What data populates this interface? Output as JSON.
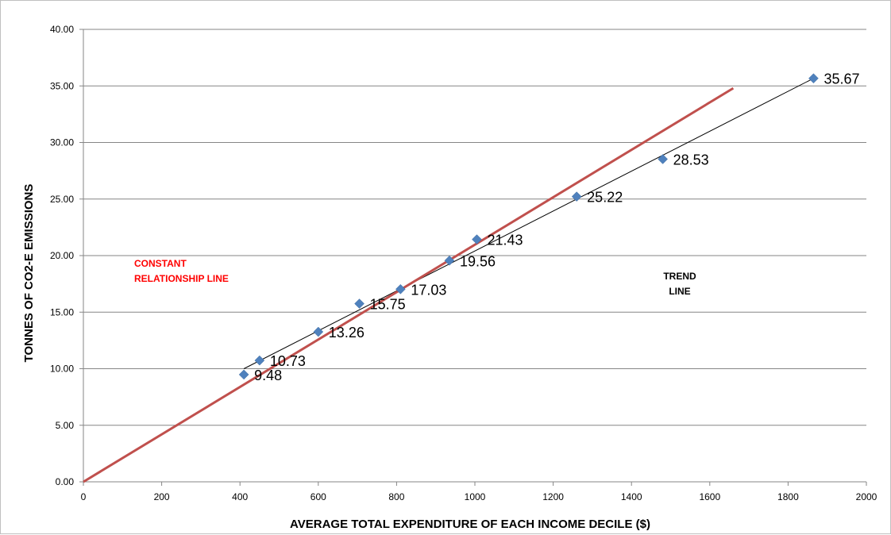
{
  "chart_data": {
    "type": "scatter",
    "title": "",
    "xlabel": "AVERAGE TOTAL EXPENDITURE OF EACH INCOME DECILE ($)",
    "ylabel": "TONNES OF CO2-E EMISSIONS",
    "xlim": [
      0,
      2000
    ],
    "ylim": [
      0,
      40
    ],
    "x_ticks": [
      "0",
      "200",
      "400",
      "600",
      "800",
      "1000",
      "1200",
      "1400",
      "1600",
      "1800",
      "2000"
    ],
    "y_ticks": [
      "0.00",
      "5.00",
      "10.00",
      "15.00",
      "20.00",
      "25.00",
      "30.00",
      "35.00",
      "40.00"
    ],
    "grid": "horizontal",
    "legend": "none",
    "series": [
      {
        "x": [
          410,
          450,
          600,
          705,
          810,
          935,
          1005,
          1260,
          1480,
          1865
        ],
        "y": [
          9.48,
          10.73,
          13.26,
          15.75,
          17.03,
          19.56,
          21.43,
          25.22,
          28.53,
          35.67
        ],
        "labels": [
          "9.48",
          "10.73",
          "13.26",
          "15.75",
          "17.03",
          "19.56",
          "21.43",
          "25.22",
          "28.53",
          "35.67"
        ],
        "color": "#4f81bd"
      }
    ],
    "lines": [
      {
        "kind": "trend",
        "x": [
          410,
          1865
        ],
        "y": [
          10.0,
          35.67
        ],
        "color": "#000000"
      },
      {
        "kind": "constant",
        "x": [
          0,
          1660
        ],
        "y": [
          0,
          34.8
        ],
        "color": "#c0504d"
      }
    ],
    "annotations": [
      {
        "text_lines": [
          "CONSTANT",
          "RELATIONSHIP LINE"
        ],
        "color": "#ff0000",
        "anchor": "constant"
      },
      {
        "text_lines": [
          "TREND",
          "LINE"
        ],
        "color": "#000000",
        "anchor": "trend"
      }
    ]
  }
}
